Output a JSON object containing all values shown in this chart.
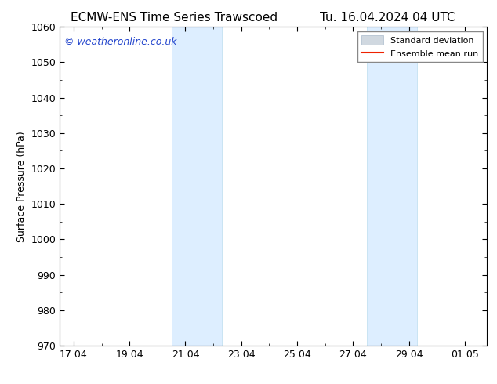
{
  "title_left": "ECMW-ENS Time Series Trawscoed",
  "title_right": "Tu. 16.04.2024 04 UTC",
  "ylabel": "Surface Pressure (hPa)",
  "ylim": [
    970,
    1060
  ],
  "yticks": [
    970,
    980,
    990,
    1000,
    1010,
    1020,
    1030,
    1040,
    1050,
    1060
  ],
  "xtick_labels": [
    "17.04",
    "19.04",
    "21.04",
    "23.04",
    "25.04",
    "27.04",
    "29.04",
    "01.05"
  ],
  "xtick_positions": [
    0,
    2,
    4,
    6,
    8,
    10,
    12,
    14
  ],
  "xlim_start": -0.5,
  "xlim_end": 14.8,
  "shaded_bands": [
    {
      "x_start": 3.5,
      "x_end": 5.3
    },
    {
      "x_start": 10.5,
      "x_end": 12.3
    }
  ],
  "shade_color": "#ddeeff",
  "shade_edge_color": "#bbddee",
  "background_color": "#ffffff",
  "watermark_text": "© weatheronline.co.uk",
  "watermark_color": "#2244cc",
  "legend_std_color": "#d0d8e0",
  "legend_std_edge": "#aabbcc",
  "legend_mean_color": "#ee2200",
  "title_fontsize": 11,
  "axis_fontsize": 9,
  "tick_fontsize": 9,
  "watermark_fontsize": 9,
  "legend_fontsize": 8
}
